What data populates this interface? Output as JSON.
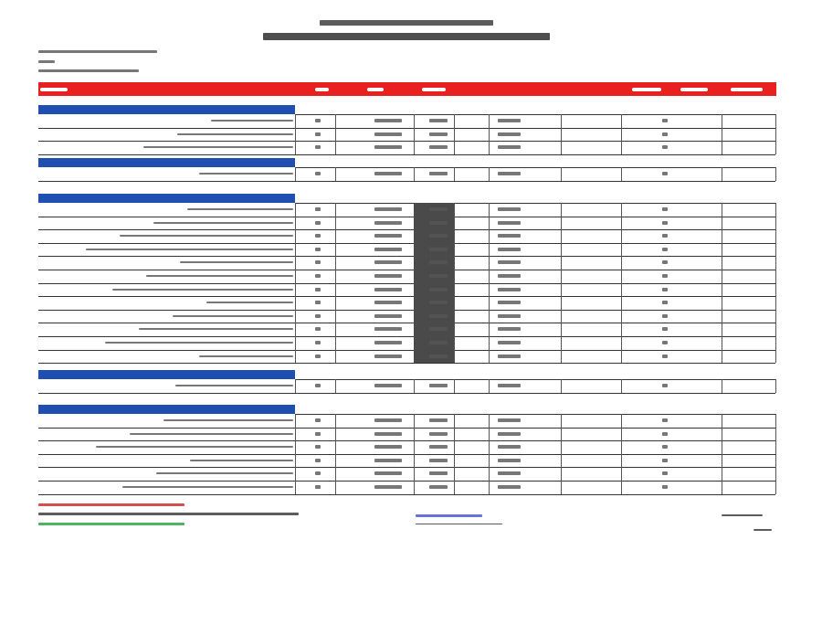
{
  "document": {
    "colors": {
      "header_bar": "#e82020",
      "section_header": "#1f4fb0",
      "highlight_column": "#4a4a4a",
      "footer_red": "#d02020",
      "footer_green": "#20a040",
      "footer_blue": "#4050d0"
    },
    "sections": [
      {
        "rows": 3
      },
      {
        "rows": 1
      },
      {
        "rows": 12,
        "highlighted_column": true
      },
      {
        "rows": 1
      },
      {
        "rows": 6
      }
    ]
  }
}
